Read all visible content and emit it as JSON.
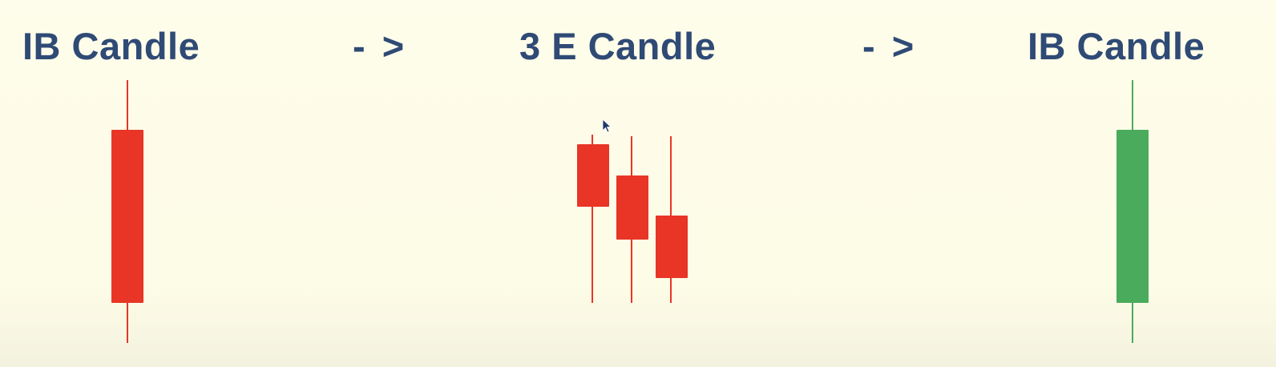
{
  "headings": {
    "left": "IB Candle",
    "arrow_1": "- >",
    "middle": "3 E Candle",
    "arrow_2": "- >",
    "right": "IB Candle"
  },
  "colors": {
    "heading": "#2f4a75",
    "bearish_candle": "#e83526",
    "bullish_candle": "#4bab5c",
    "background": "#fdfce6"
  },
  "candles": [
    {
      "group": "IB Candle (left)",
      "direction": "bearish"
    },
    {
      "group": "3 E Candle",
      "direction": "bearish"
    },
    {
      "group": "3 E Candle",
      "direction": "bearish"
    },
    {
      "group": "3 E Candle",
      "direction": "bearish"
    },
    {
      "group": "IB Candle (right)",
      "direction": "bullish"
    }
  ],
  "icons": {
    "cursor": "mouse-pointer-icon"
  }
}
